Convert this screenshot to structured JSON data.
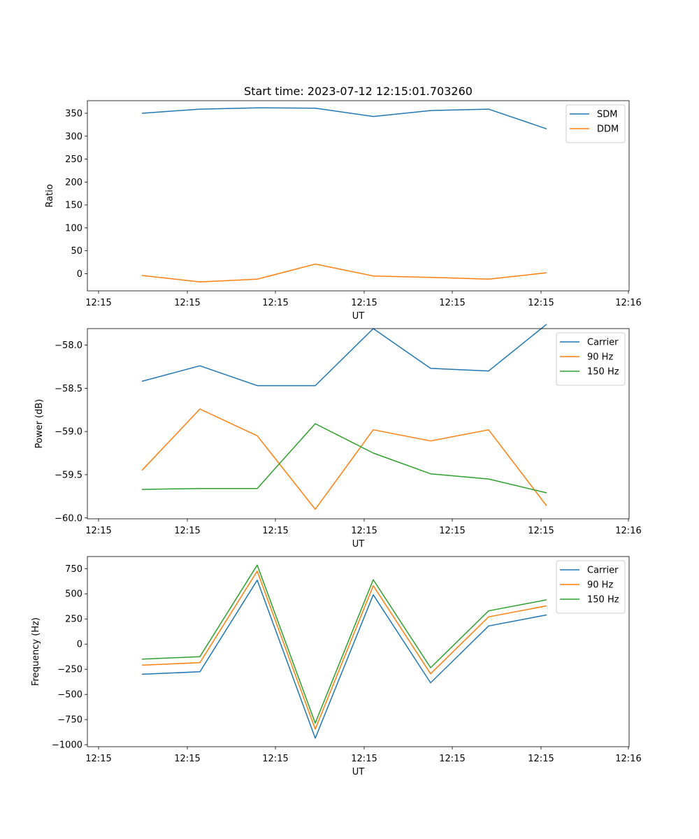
{
  "figure": {
    "title": "Start time: 2023-07-12 12:15:01.703260"
  },
  "chart_data": [
    {
      "type": "line",
      "xlabel": "UT",
      "ylabel": "Ratio",
      "x_tick_labels": [
        "12:15",
        "12:15",
        "12:15",
        "12:15",
        "12:15",
        "12:15",
        "12:16"
      ],
      "y_ticks": [
        0,
        50,
        100,
        150,
        200,
        250,
        300,
        350
      ],
      "y_tick_labels": [
        "0",
        "50",
        "100",
        "150",
        "200",
        "250",
        "300",
        "350"
      ],
      "ylim": [
        -37.5,
        377.5
      ],
      "legend": "top-right",
      "series": [
        {
          "name": "SDM",
          "color": "#1f77b4",
          "values": [
            350,
            359,
            362,
            361,
            343,
            356,
            359,
            316
          ]
        },
        {
          "name": "DDM",
          "color": "#ff7f0e",
          "values": [
            -4,
            -18,
            -12,
            21,
            -5,
            -8,
            -12,
            2
          ]
        }
      ]
    },
    {
      "type": "line",
      "xlabel": "UT",
      "ylabel": "Power (dB)",
      "x_tick_labels": [
        "12:15",
        "12:15",
        "12:15",
        "12:15",
        "12:15",
        "12:15",
        "12:16"
      ],
      "y_ticks": [
        -60.0,
        -59.5,
        -59.0,
        -58.5,
        -58.0
      ],
      "y_tick_labels": [
        "−60.0",
        "−59.5",
        "−59.0",
        "−58.5",
        "−58.0"
      ],
      "ylim": [
        -60.01,
        -57.81
      ],
      "legend": "top-right",
      "series": [
        {
          "name": "Carrier",
          "color": "#1f77b4",
          "values": [
            -58.42,
            -58.24,
            -58.47,
            -58.47,
            -57.81,
            -58.27,
            -58.3,
            -57.76
          ]
        },
        {
          "name": "90 Hz",
          "color": "#ff7f0e",
          "values": [
            -59.45,
            -58.74,
            -59.05,
            -59.9,
            -58.98,
            -59.11,
            -58.98,
            -59.86
          ]
        },
        {
          "name": "150 Hz",
          "color": "#2ca02c",
          "values": [
            -59.67,
            -59.66,
            -59.66,
            -58.91,
            -59.25,
            -59.49,
            -59.55,
            -59.71
          ]
        }
      ]
    },
    {
      "type": "line",
      "xlabel": "UT",
      "ylabel": "Frequency (Hz)",
      "x_tick_labels": [
        "12:15",
        "12:15",
        "12:15",
        "12:15",
        "12:15",
        "12:15",
        "12:16"
      ],
      "y_ticks": [
        -1000,
        -750,
        -500,
        -250,
        0,
        250,
        500,
        750
      ],
      "y_tick_labels": [
        "−1000",
        "−750",
        "−500",
        "−250",
        "0",
        "250",
        "500",
        "750"
      ],
      "ylim": [
        -1020,
        870
      ],
      "legend": "top-right",
      "series": [
        {
          "name": "Carrier",
          "color": "#1f77b4",
          "values": [
            -300,
            -275,
            635,
            -935,
            490,
            -385,
            180,
            290
          ]
        },
        {
          "name": "90 Hz",
          "color": "#ff7f0e",
          "values": [
            -210,
            -185,
            725,
            -845,
            580,
            -295,
            270,
            380
          ]
        },
        {
          "name": "150 Hz",
          "color": "#2ca02c",
          "values": [
            -150,
            -125,
            785,
            -785,
            640,
            -235,
            330,
            440
          ]
        }
      ]
    }
  ]
}
